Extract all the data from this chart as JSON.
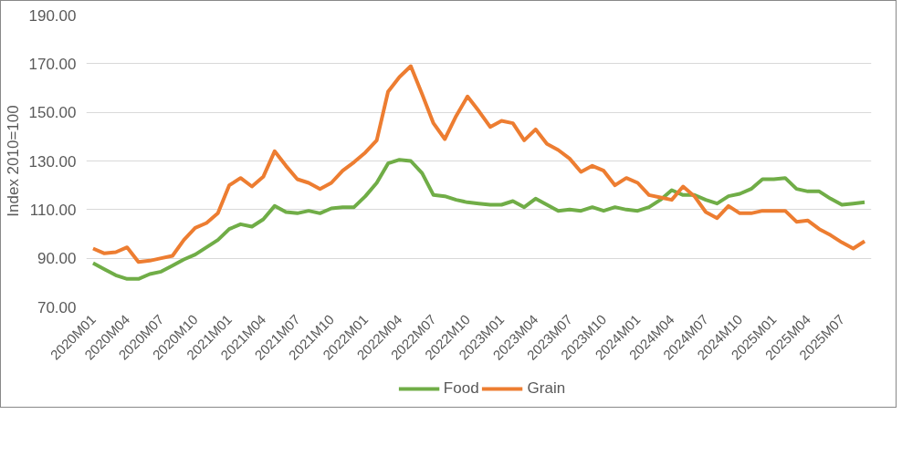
{
  "chart_data": {
    "type": "line",
    "ylabel": "Index 2010=100",
    "categories": [
      "2020M01",
      null,
      null,
      "2020M04",
      null,
      null,
      "2020M07",
      null,
      null,
      "2020M10",
      null,
      null,
      "2021M01",
      null,
      null,
      "2021M04",
      null,
      null,
      "2021M07",
      null,
      null,
      "2021M10",
      null,
      null,
      "2022M01",
      null,
      null,
      "2022M04",
      null,
      null,
      "2022M07",
      null,
      null,
      "2022M10",
      null,
      null,
      "2023M01",
      null,
      null,
      "2023M04",
      null,
      null,
      "2023M07",
      null,
      null,
      "2023M10",
      null,
      null,
      "2024M01",
      null,
      null,
      "2024M04",
      null,
      null,
      "2024M07",
      null,
      null,
      "2024M10",
      null,
      null,
      "2025M01",
      null,
      null,
      "2025M04",
      null,
      null,
      "2025M07",
      null,
      null
    ],
    "series": [
      {
        "name": "Food",
        "color": "#70ad47",
        "values": [
          88,
          85.5,
          83,
          81.5,
          81.5,
          83.5,
          84.5,
          87,
          89.5,
          91.5,
          94.5,
          97.5,
          102,
          104,
          103,
          106,
          111.5,
          109,
          108.5,
          109.5,
          108.5,
          110.5,
          111,
          111,
          115.5,
          121,
          129,
          130.5,
          130,
          125,
          116,
          115.5,
          114,
          113,
          112.5,
          112,
          112,
          113.5,
          111,
          114.5,
          112,
          109.5,
          110,
          109.5,
          111,
          109.5,
          111,
          110,
          109.5,
          111,
          114,
          118,
          116,
          116,
          114,
          112.5,
          115.5,
          116.5,
          118.5,
          122.5,
          122.5,
          123,
          118.5,
          117.5,
          117.5,
          114.5,
          112,
          112.5,
          113
        ]
      },
      {
        "name": "Grain",
        "color": "#ed7d31",
        "values": [
          94,
          92,
          92.5,
          94.5,
          88.5,
          89,
          90,
          91,
          97.5,
          102.5,
          104.5,
          108.5,
          120,
          123,
          119.5,
          123.5,
          134,
          128,
          122.5,
          121,
          118.5,
          121,
          126,
          129.5,
          133.5,
          138.5,
          158.5,
          164.5,
          169,
          157.5,
          145.5,
          139,
          148.5,
          156.5,
          150.5,
          144,
          146.5,
          145.5,
          138.5,
          143,
          137,
          134.5,
          131,
          125.5,
          128,
          126,
          120,
          123,
          121,
          116,
          115,
          114,
          119.5,
          115.5,
          109,
          106.5,
          111.5,
          108.5,
          108.5,
          109.5,
          109.5,
          109.5,
          105,
          105.5,
          102,
          99.5,
          96.5,
          94,
          97
        ]
      }
    ],
    "ylim": [
      70,
      190
    ],
    "yticks": [
      {
        "value": 70,
        "label": "70.00"
      },
      {
        "value": 90,
        "label": "90.00"
      },
      {
        "value": 110,
        "label": "110.00"
      },
      {
        "value": 130,
        "label": "130.00"
      },
      {
        "value": 150,
        "label": "150.00"
      },
      {
        "value": 170,
        "label": "170.00"
      },
      {
        "value": 190,
        "label": "190.00"
      }
    ],
    "grid": "y",
    "legend": "bottom",
    "marker": "none",
    "line_style": "solid"
  }
}
